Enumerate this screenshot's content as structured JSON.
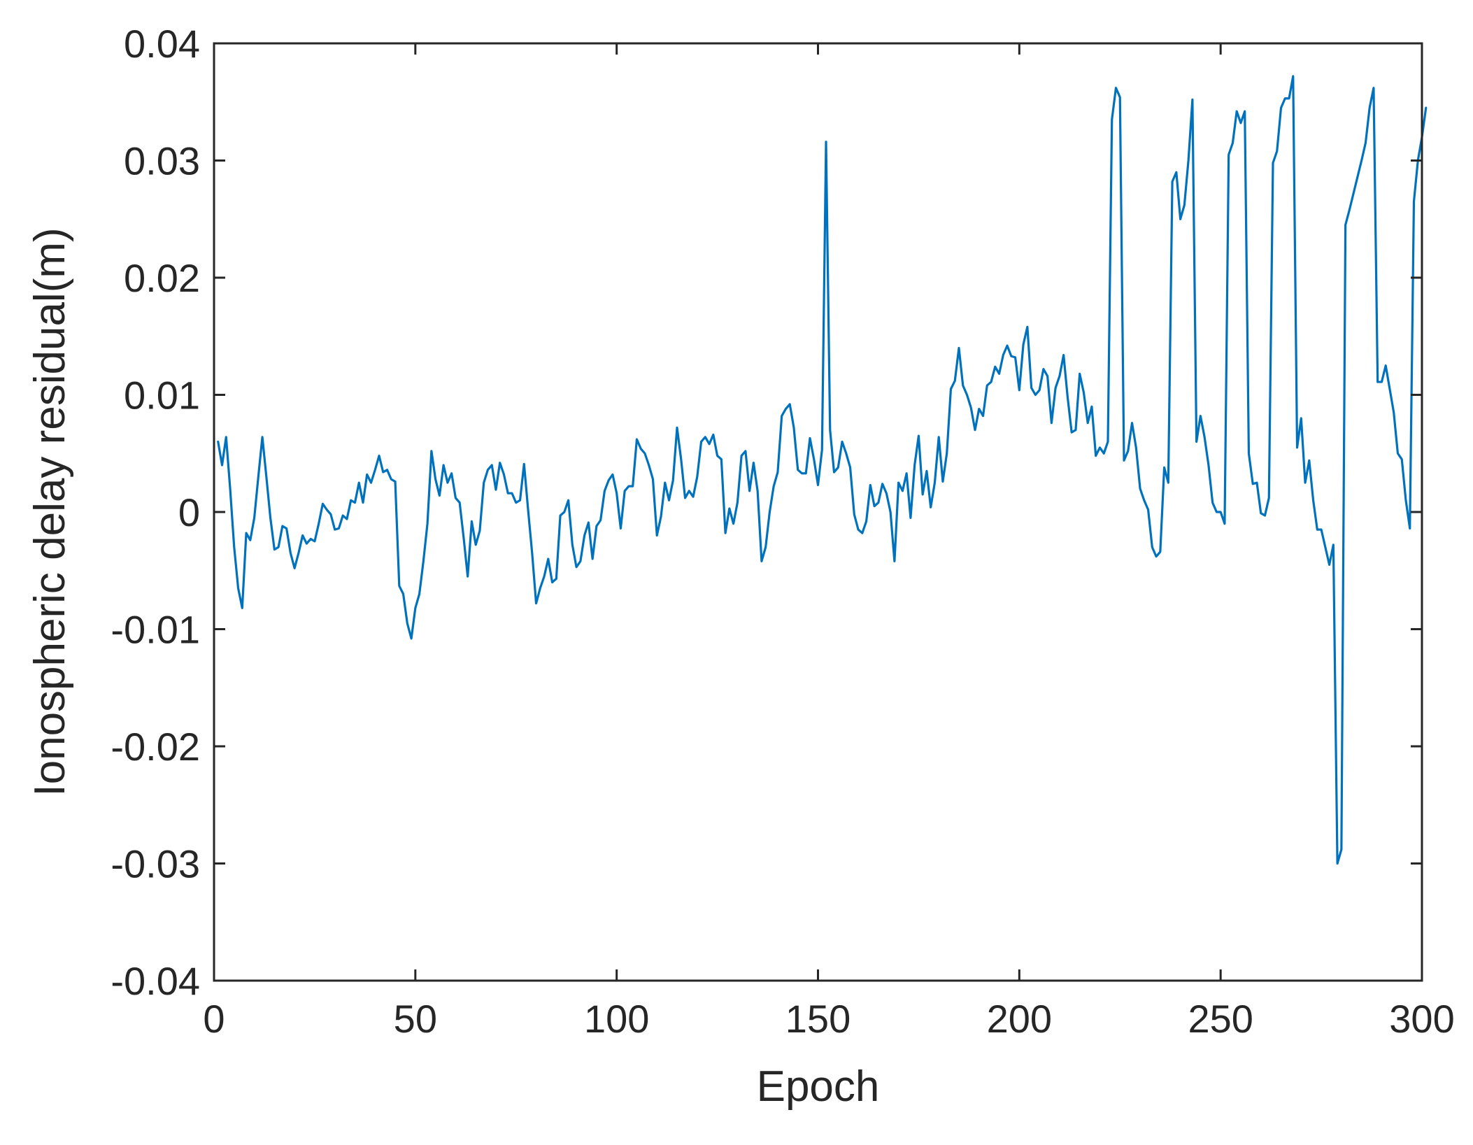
{
  "chart_data": {
    "type": "line",
    "title": "",
    "xlabel": "Epoch",
    "ylabel": "Ionospheric delay residual(m)",
    "xlim": [
      0,
      300
    ],
    "ylim": [
      -0.04,
      0.04
    ],
    "x_ticks": [
      "0",
      "50",
      "100",
      "150",
      "200",
      "250",
      "300"
    ],
    "y_ticks": [
      "-0.04",
      "-0.03",
      "-0.02",
      "-0.01",
      "0",
      "0.01",
      "0.02",
      "0.03",
      "0.04"
    ],
    "grid": false,
    "colors": {
      "series": "#0072BD",
      "axes": "#262626"
    },
    "series": [
      {
        "x_start": 1,
        "x_step": 1,
        "values": [
          0.006,
          0.004,
          0.0064,
          0.002,
          -0.003,
          -0.0065,
          -0.0082,
          -0.0018,
          -0.0024,
          -0.0005,
          0.003,
          0.0064,
          0.003,
          -0.0005,
          -0.0032,
          -0.003,
          -0.0012,
          -0.0014,
          -0.0035,
          -0.0048,
          -0.0035,
          -0.002,
          -0.0027,
          -0.0023,
          -0.0025,
          -0.001,
          0.0007,
          0.0002,
          -0.0002,
          -0.0015,
          -0.0014,
          -0.0003,
          -0.0006,
          0.001,
          0.0008,
          0.0025,
          0.0008,
          0.0032,
          0.0025,
          0.0036,
          0.0048,
          0.0034,
          0.0036,
          0.0028,
          0.0026,
          -0.0063,
          -0.007,
          -0.0095,
          -0.0108,
          -0.0082,
          -0.007,
          -0.0042,
          -0.001,
          0.0052,
          0.0028,
          0.0014,
          0.004,
          0.0025,
          0.0033,
          0.0012,
          0.0008,
          -0.0022,
          -0.0055,
          -0.0008,
          -0.0028,
          -0.0016,
          0.0025,
          0.0036,
          0.004,
          0.0019,
          0.0042,
          0.0032,
          0.0016,
          0.0016,
          0.0008,
          0.001,
          0.0041,
          0.0002,
          -0.0035,
          -0.0078,
          -0.0065,
          -0.0055,
          -0.004,
          -0.006,
          -0.0057,
          -0.0003,
          0.0,
          0.001,
          -0.0028,
          -0.0047,
          -0.0042,
          -0.002,
          -0.0009,
          -0.004,
          -0.0012,
          -0.0007,
          0.0018,
          0.0027,
          0.0032,
          0.0016,
          -0.0014,
          0.0018,
          0.0022,
          0.0022,
          0.0062,
          0.0054,
          0.005,
          0.004,
          0.0028,
          -0.002,
          -0.0004,
          0.0025,
          0.001,
          0.0027,
          0.0072,
          0.0045,
          0.0012,
          0.0018,
          0.0013,
          0.003,
          0.006,
          0.0064,
          0.0058,
          0.0066,
          0.0048,
          0.0045,
          -0.0018,
          0.0003,
          -0.001,
          0.0008,
          0.0048,
          0.0052,
          0.0018,
          0.0042,
          0.0018,
          -0.0042,
          -0.003,
          0.0,
          0.0022,
          0.0034,
          0.0082,
          0.0088,
          0.0092,
          0.0072,
          0.0036,
          0.0033,
          0.0033,
          0.0063,
          0.0045,
          0.0023,
          0.0053,
          0.0316,
          0.007,
          0.0034,
          0.0038,
          0.006,
          0.005,
          0.0038,
          -0.0002,
          -0.0015,
          -0.0018,
          -0.0008,
          0.0023,
          0.0005,
          0.0008,
          0.0024,
          0.0016,
          0.0,
          -0.0042,
          0.0025,
          0.0018,
          0.0033,
          -0.0005,
          0.004,
          0.0065,
          0.0015,
          0.0035,
          0.0004,
          0.0025,
          0.0064,
          0.0026,
          0.005,
          0.0105,
          0.0112,
          0.014,
          0.0108,
          0.01,
          0.0089,
          0.007,
          0.0088,
          0.0082,
          0.0108,
          0.0111,
          0.0124,
          0.0118,
          0.0134,
          0.0142,
          0.0133,
          0.0132,
          0.0104,
          0.0143,
          0.0158,
          0.0106,
          0.01,
          0.0104,
          0.0122,
          0.0116,
          0.0076,
          0.0106,
          0.0116,
          0.0134,
          0.0098,
          0.0068,
          0.007,
          0.0118,
          0.0102,
          0.0076,
          0.009,
          0.0048,
          0.0055,
          0.005,
          0.006,
          0.0335,
          0.0362,
          0.0354,
          0.0044,
          0.0052,
          0.0076,
          0.0055,
          0.002,
          0.001,
          0.0002,
          -0.003,
          -0.0038,
          -0.0034,
          0.0038,
          0.0025,
          0.0282,
          0.029,
          0.025,
          0.0262,
          0.03,
          0.0352,
          0.006,
          0.0082,
          0.0064,
          0.004,
          0.0008,
          0.0,
          0.0,
          -0.001,
          0.0305,
          0.0315,
          0.0342,
          0.0332,
          0.0342,
          0.005,
          0.0024,
          0.0025,
          -0.0001,
          -0.0003,
          0.0012,
          0.0298,
          0.0308,
          0.0345,
          0.0353,
          0.0353,
          0.0372,
          0.0055,
          0.008,
          0.0025,
          0.0044,
          0.001,
          -0.0015,
          -0.0015,
          -0.003,
          -0.0045,
          -0.0028,
          -0.03,
          -0.0288,
          0.0245,
          0.0258,
          0.0272,
          0.0286,
          0.03,
          0.0315,
          0.0345,
          0.0362,
          0.0111,
          0.0111,
          0.0125,
          0.0105,
          0.0085,
          0.005,
          0.0045,
          0.001,
          -0.0014,
          0.0265,
          0.03,
          0.032,
          0.0345
        ]
      }
    ]
  }
}
